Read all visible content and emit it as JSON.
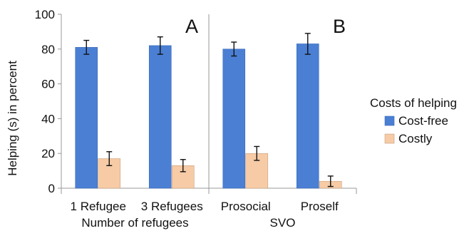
{
  "chart_data": {
    "type": "bar",
    "ylabel": "Helping (s) in percent",
    "ylim": [
      0,
      100
    ],
    "yticks": [
      0,
      20,
      40,
      60,
      80,
      100
    ],
    "grid": false,
    "legend": {
      "title": "Costs of helping",
      "placement": "right"
    },
    "series": [
      {
        "name": "Cost-free",
        "color": "#4a7fd4"
      },
      {
        "name": "Costly",
        "color": "#f6cba6"
      }
    ],
    "panels": [
      {
        "letter": "A",
        "xlabel": "Number of refugees",
        "categories": [
          "1 Refugee",
          "3 Refugees"
        ],
        "values": {
          "Cost-free": [
            81,
            82
          ],
          "Costly": [
            17,
            13
          ]
        },
        "errors": {
          "Cost-free": [
            4,
            5
          ],
          "Costly": [
            4,
            3.5
          ]
        }
      },
      {
        "letter": "B",
        "xlabel": "SVO",
        "categories": [
          "Prosocial",
          "Proself"
        ],
        "values": {
          "Cost-free": [
            80,
            83
          ],
          "Costly": [
            20,
            4
          ]
        },
        "errors": {
          "Cost-free": [
            4,
            6
          ],
          "Costly": [
            4,
            3
          ]
        }
      }
    ]
  }
}
